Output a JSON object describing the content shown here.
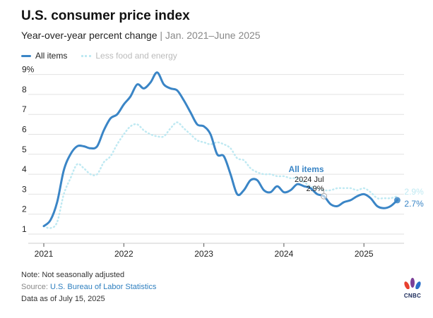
{
  "header": {
    "title": "U.S. consumer price index",
    "subtitle": "Year-over-year percent change",
    "range": "| Jan. 2021–June 2025"
  },
  "footer": {
    "note": "Note: Not seasonally adjusted",
    "source_label": "Source: ",
    "source_link": "U.S. Bureau of Labor Statistics",
    "data_date": "Data as of July 15, 2025",
    "logo_text": "CNBC"
  },
  "chart_data": {
    "type": "line",
    "title": "U.S. consumer price index",
    "xlabel": "",
    "ylabel": "",
    "x_start": "2021-01",
    "x_end": "2025-06",
    "x_ticks": [
      "2021",
      "2022",
      "2023",
      "2024",
      "2025"
    ],
    "y_ticks": [
      "1",
      "2",
      "3",
      "4",
      "5",
      "6",
      "7",
      "8",
      "9%"
    ],
    "ylim": [
      1,
      9
    ],
    "grid": true,
    "legend_position": "top-left",
    "series": [
      {
        "name": "All items",
        "color": "#3a85c6",
        "end_label": "2.7%",
        "values": [
          1.4,
          1.7,
          2.6,
          4.2,
          5.0,
          5.4,
          5.4,
          5.3,
          5.4,
          6.2,
          6.8,
          7.0,
          7.5,
          7.9,
          8.5,
          8.3,
          8.6,
          9.1,
          8.5,
          8.3,
          8.2,
          7.7,
          7.1,
          6.5,
          6.4,
          6.0,
          5.0,
          4.9,
          4.0,
          3.0,
          3.2,
          3.7,
          3.7,
          3.2,
          3.1,
          3.4,
          3.1,
          3.2,
          3.5,
          3.4,
          3.3,
          3.0,
          2.9,
          2.5,
          2.4,
          2.6,
          2.7,
          2.9,
          3.0,
          2.8,
          2.4,
          2.3,
          2.4,
          2.7
        ]
      },
      {
        "name": "Less food and energy",
        "color": "#bfe9f2",
        "end_label": "2.9%",
        "values": [
          1.4,
          1.3,
          1.6,
          3.0,
          3.8,
          4.5,
          4.3,
          4.0,
          4.0,
          4.6,
          4.9,
          5.5,
          6.0,
          6.4,
          6.5,
          6.2,
          6.0,
          5.9,
          5.9,
          6.3,
          6.6,
          6.3,
          6.0,
          5.7,
          5.6,
          5.5,
          5.6,
          5.5,
          5.3,
          4.8,
          4.7,
          4.3,
          4.1,
          4.0,
          4.0,
          3.9,
          3.9,
          3.8,
          3.8,
          3.6,
          3.4,
          3.3,
          3.2,
          3.2,
          3.3,
          3.3,
          3.3,
          3.2,
          3.3,
          3.1,
          2.8,
          2.8,
          2.8,
          2.9
        ]
      }
    ],
    "annotation": {
      "series": "All items",
      "label": "2024 Jul",
      "value": "2.9%",
      "index": 42
    }
  }
}
